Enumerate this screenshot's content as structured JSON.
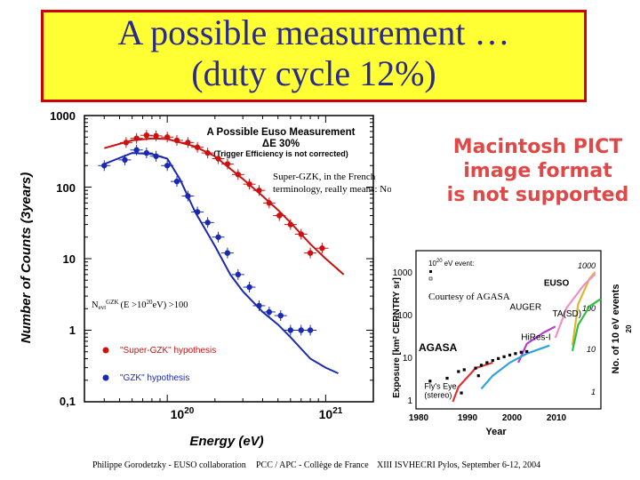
{
  "title": {
    "line1": "A possible measurement …",
    "line2": "(duty cycle 12%)"
  },
  "chart_data": [
    {
      "type": "scatter",
      "title": "A Possible Euso Measurement",
      "subtitle": "ΔE 30%",
      "subtitle2": "(Trigger Efficiency is not corrected)",
      "xlabel": "Energy (eV)",
      "ylabel": "Number of Counts (3years)",
      "xscale": "log",
      "yscale": "log",
      "xlim": [
        3e+19,
        2e+21
      ],
      "ylim": [
        0.1,
        1000
      ],
      "y_ticks": [
        "1000",
        "100",
        "10",
        "1",
        "0,1"
      ],
      "x_ticks": [
        {
          "base": "10",
          "exp": "20"
        },
        {
          "base": "10",
          "exp": "21"
        }
      ],
      "series": [
        {
          "name": "\"Super-GZK\" hypothesis",
          "color": "#cc1111",
          "points": [
            [
              5.5e+19,
              420
            ],
            [
              6.4e+19,
              480
            ],
            [
              7.4e+19,
              530
            ],
            [
              8.5e+19,
              520
            ],
            [
              1e+20,
              500
            ],
            [
              1.15e+20,
              450
            ],
            [
              1.35e+20,
              420
            ],
            [
              1.55e+20,
              360
            ],
            [
              1.8e+20,
              300
            ],
            [
              2.1e+20,
              250
            ],
            [
              2.4e+20,
              210
            ],
            [
              2.8e+20,
              150
            ],
            [
              3.3e+20,
              110
            ],
            [
              3.8e+20,
              90
            ],
            [
              4.4e+20,
              60
            ],
            [
              5.1e+20,
              40
            ],
            [
              6e+20,
              30
            ],
            [
              7e+20,
              22
            ],
            [
              8e+20,
              12
            ],
            [
              9.5e+20,
              14
            ]
          ],
          "curve": [
            [
              4e+19,
              350
            ],
            [
              6e+19,
              450
            ],
            [
              8e+19,
              480
            ],
            [
              1e+20,
              470
            ],
            [
              1.5e+20,
              370
            ],
            [
              2e+20,
              270
            ],
            [
              3e+20,
              130
            ],
            [
              4e+20,
              75
            ],
            [
              5e+20,
              48
            ],
            [
              6e+20,
              32
            ],
            [
              7e+20,
              22
            ],
            [
              8e+20,
              16
            ],
            [
              1e+21,
              10
            ],
            [
              1.3e+21,
              6
            ]
          ]
        },
        {
          "name": "\"GZK\" hypothesis",
          "color": "#1a2ab0",
          "points": [
            [
              4e+19,
              200
            ],
            [
              5.4e+19,
              240
            ],
            [
              6.4e+19,
              330
            ],
            [
              7.4e+19,
              300
            ],
            [
              8.5e+19,
              270
            ],
            [
              1e+20,
              200
            ],
            [
              1.15e+20,
              120
            ],
            [
              1.35e+20,
              75
            ],
            [
              1.55e+20,
              45
            ],
            [
              1.8e+20,
              32
            ],
            [
              2.1e+20,
              20
            ],
            [
              2.4e+20,
              12
            ],
            [
              2.8e+20,
              6
            ],
            [
              3.3e+20,
              4
            ],
            [
              3.8e+20,
              2.2
            ],
            [
              4.4e+20,
              1.8
            ],
            [
              5.2e+20,
              1.6
            ],
            [
              6e+20,
              1
            ],
            [
              7e+20,
              1
            ],
            [
              8e+20,
              1
            ]
          ],
          "curve": [
            [
              4e+19,
              210
            ],
            [
              6e+19,
              300
            ],
            [
              8e+19,
              290
            ],
            [
              1e+20,
              250
            ],
            [
              1.2e+20,
              130
            ],
            [
              1.5e+20,
              45
            ],
            [
              2e+20,
              15
            ],
            [
              2.5e+20,
              6
            ],
            [
              3e+20,
              3.5
            ],
            [
              4e+20,
              1.8
            ],
            [
              5e+20,
              1.2
            ],
            [
              6e+20,
              0.8
            ],
            [
              8e+20,
              0.4
            ],
            [
              1e+21,
              0.3
            ],
            [
              1.2e+21,
              0.25
            ]
          ]
        }
      ],
      "annotations": [
        {
          "text_line1": "Super-GZK, in the French",
          "text_line2": "terminology, really means: No GZK"
        },
        {
          "prefix": "N",
          "sub": "evt",
          "sup": "GZK",
          "rest1": "(E >10",
          "sup2": "20",
          "rest2": "eV) >100"
        }
      ]
    },
    {
      "type": "line",
      "xlabel": "Year",
      "ylabel": "Exposure [km² CERNTRY sr]",
      "xlim": [
        1980,
        2012
      ],
      "ylim": [
        1,
        1000
      ],
      "x_ticks": [
        "1980",
        "1990",
        "2000",
        "2010"
      ],
      "y_ticks": [
        "1000",
        "100",
        "10",
        "1"
      ],
      "right_axis_label": "No. of 10 eV events",
      "right_axis_sup": "20",
      "right_axis_ticks": [
        "1000",
        "100",
        "10",
        "1"
      ],
      "legend_line1": "10",
      "legend_line1_sup": "20",
      "legend_line1_rest": "eV event:",
      "series": [
        {
          "name": "EUSO",
          "color": "#d8b830",
          "points": [
            [
              2007,
              20
            ],
            [
              2008,
              180
            ],
            [
              2010,
              700
            ],
            [
              2011,
              1000
            ]
          ]
        },
        {
          "name": "AUGER",
          "color": "#f090c0",
          "points": [
            [
              2004,
              30
            ],
            [
              2006,
              150
            ],
            [
              2009,
              500
            ],
            [
              2011,
              900
            ]
          ]
        },
        {
          "name": "TA(SD)",
          "color": "#30c040",
          "points": [
            [
              2007,
              15
            ],
            [
              2008,
              60
            ],
            [
              2010,
              160
            ],
            [
              2012,
              240
            ]
          ]
        },
        {
          "name": "HiRes-I",
          "color": "#b040d0",
          "points": [
            [
              1997.5,
              8
            ],
            [
              1999,
              22
            ],
            [
              2002,
              40
            ],
            [
              2004,
              55
            ]
          ]
        },
        {
          "name": "AGASA",
          "color": "#30a0e0",
          "points": [
            [
              1991,
              2
            ],
            [
              1993,
              4
            ],
            [
              1996,
              8
            ],
            [
              1999,
              13
            ],
            [
              2003,
              20
            ]
          ]
        },
        {
          "name": "Fly's Eye (stereo)",
          "color": "#e03030",
          "points": [
            [
              1986,
              1
            ],
            [
              1987,
              2.2
            ],
            [
              1990,
              6
            ],
            [
              1993,
              8
            ]
          ]
        }
      ],
      "events": [
        [
          1982,
          3
        ],
        [
          1985,
          3.5
        ],
        [
          1987,
          5
        ],
        [
          1988,
          5.5
        ],
        [
          1990,
          6
        ],
        [
          1991,
          7
        ],
        [
          1992,
          8
        ],
        [
          1993,
          9
        ],
        [
          1994,
          10
        ],
        [
          1995,
          11
        ],
        [
          1996,
          12
        ],
        [
          1997,
          13
        ],
        [
          1998,
          14
        ],
        [
          1999,
          14.5
        ],
        [
          1990.5,
          4
        ],
        [
          1987.5,
          1.6
        ]
      ]
    }
  ],
  "courtesy": "Courtesy of AGASA",
  "pict_placeholder": {
    "line1": "Macintosh PICT",
    "line2": "image format",
    "line3": "is not supported"
  },
  "footer": {
    "left": "Philippe Gorodetzky - EUSO collaboration",
    "middle": "PCC / APC - Collège de France",
    "right": "XIII ISVHECRI Pylos, September 6-12, 2004"
  }
}
